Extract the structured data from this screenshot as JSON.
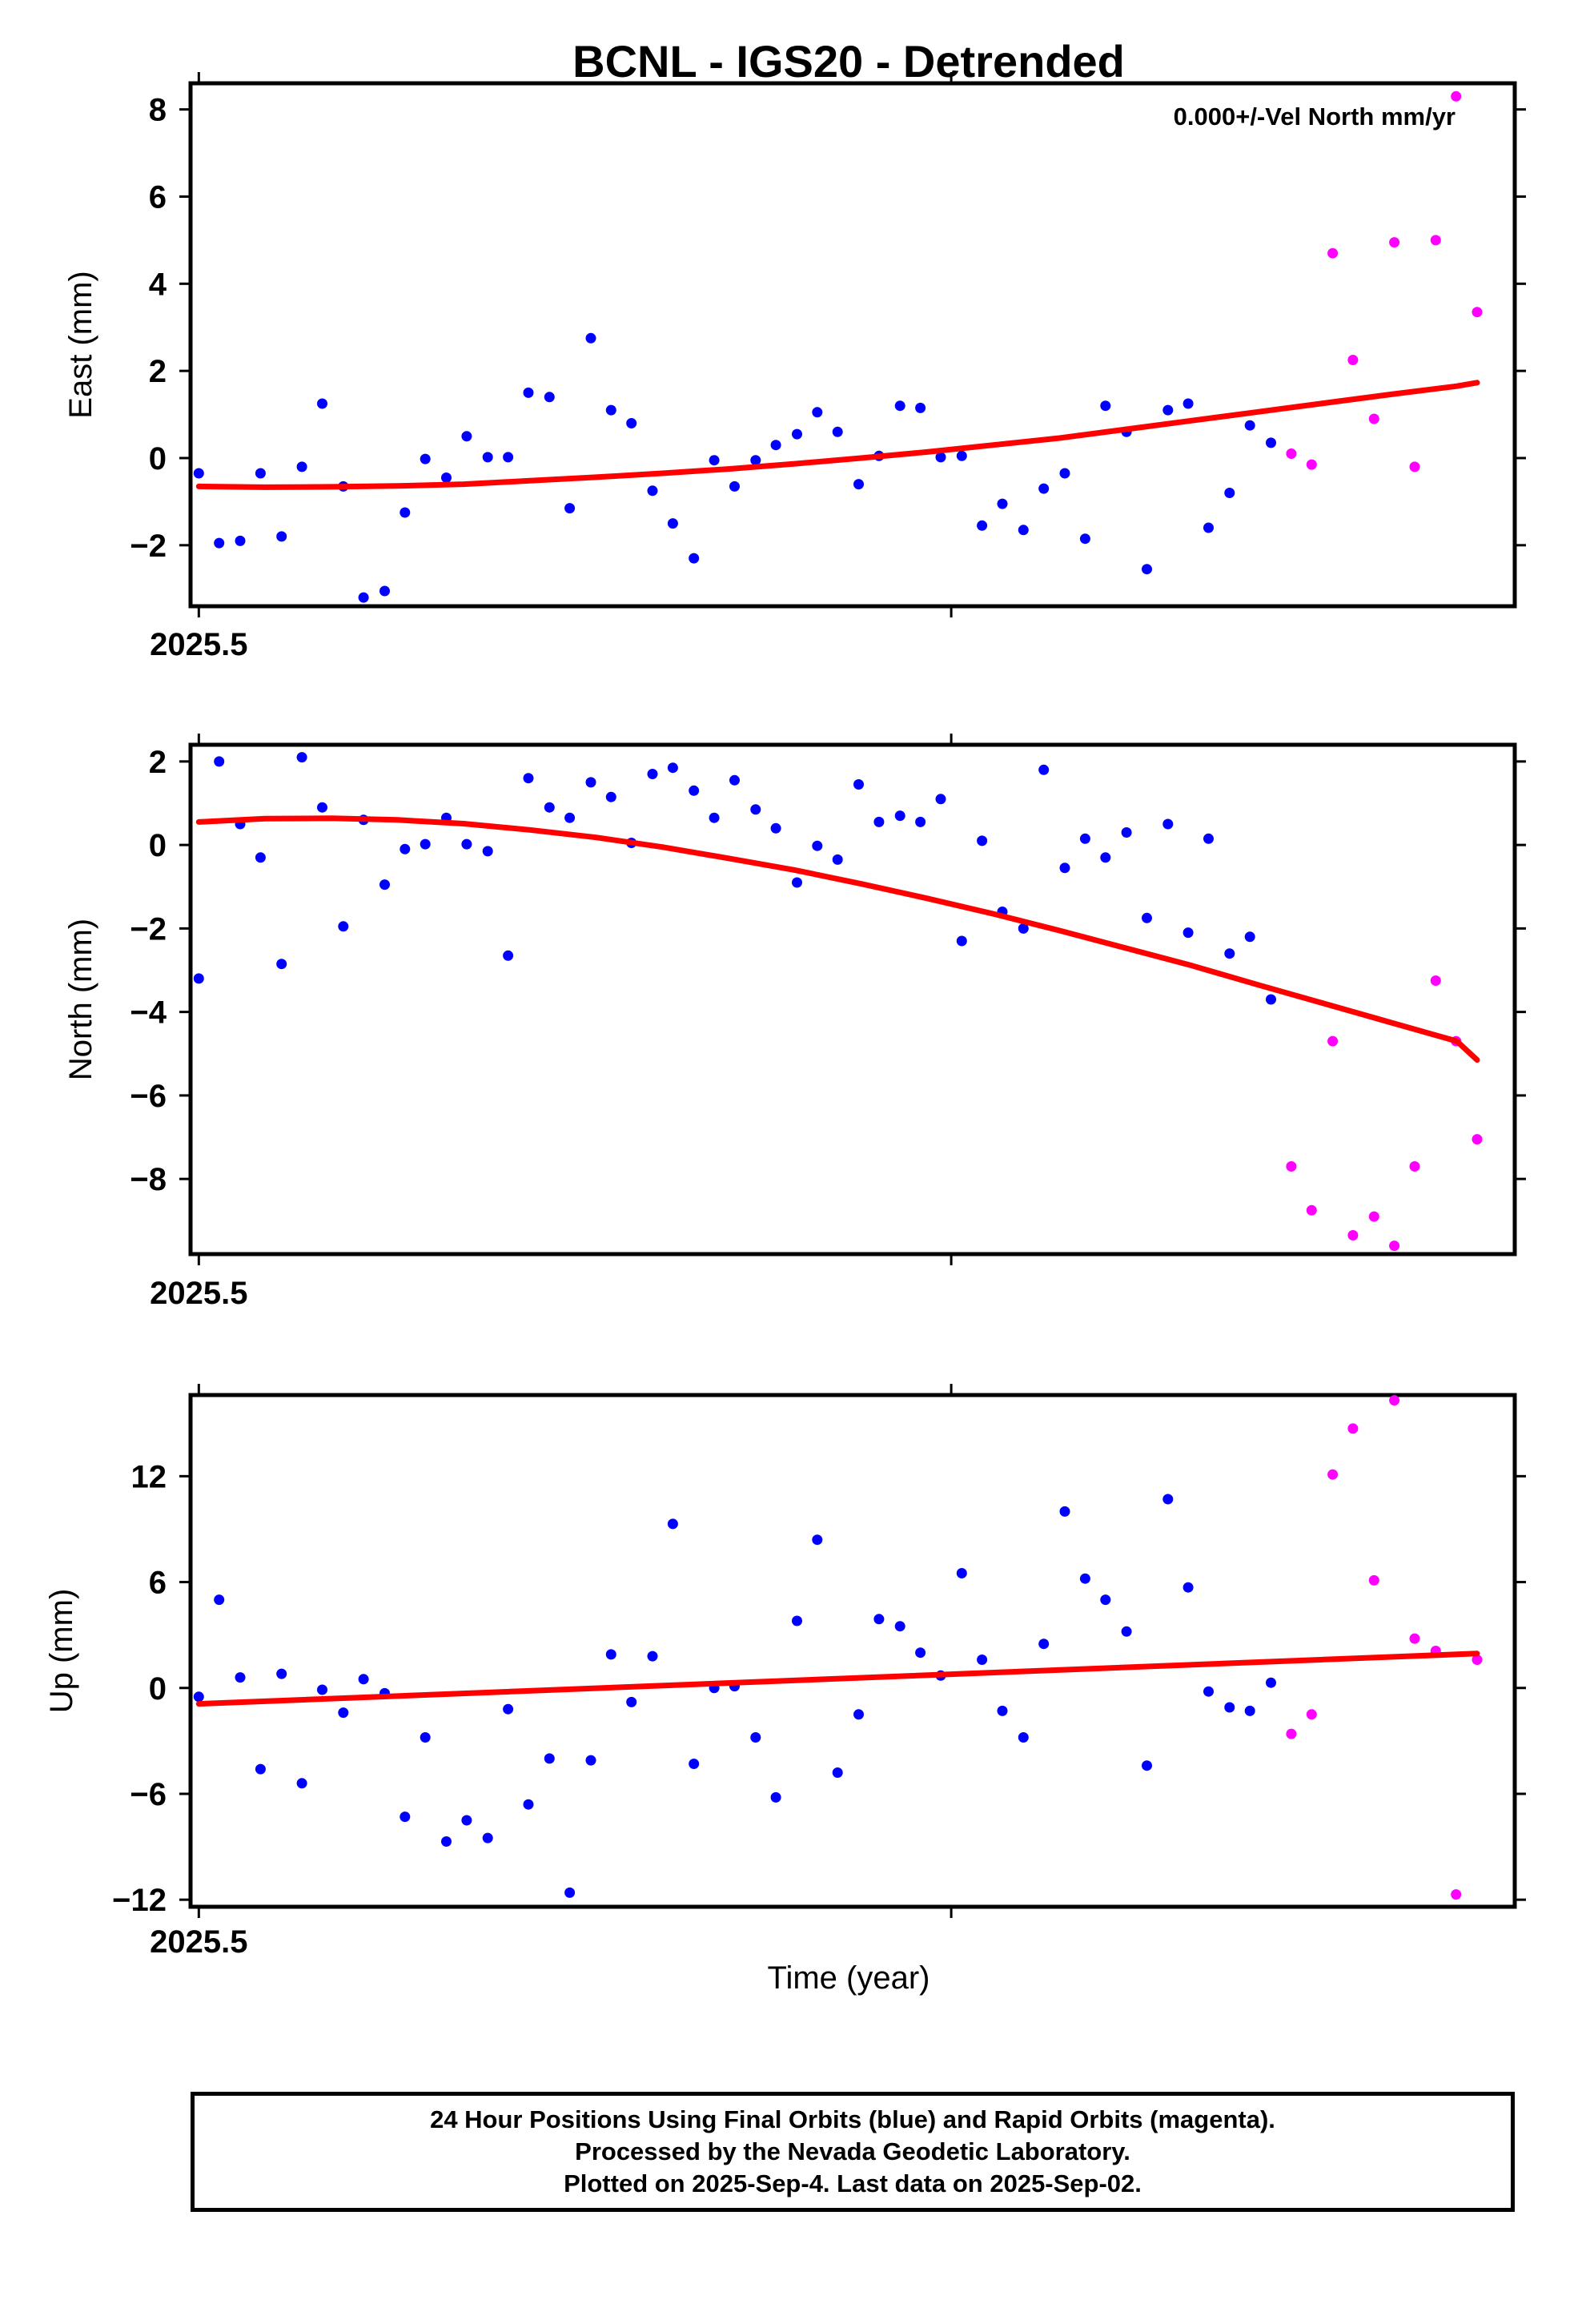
{
  "title": "BCNL - IGS20 - Detrended",
  "annotation": "0.000+/-Vel North mm/yr",
  "xlabel": "Time (year)",
  "footer": {
    "line1": "24 Hour Positions Using Final Orbits (blue) and Rapid Orbits (magenta).",
    "line2": "Processed by the Nevada Geodetic Laboratory.",
    "line3": "Plotted on 2025-Sep-4. Last data on 2025-Sep-02."
  },
  "colors": {
    "final": "#0000ff",
    "rapid": "#ff00ff",
    "trend": "#ff0000",
    "frame": "#000000"
  },
  "chart_data": [
    {
      "type": "scatter",
      "ylabel": "East (mm)",
      "xlim": [
        2025.4989,
        2025.6749
      ],
      "ylim": [
        -3.4,
        8.6
      ],
      "yticks": [
        -2,
        0,
        2,
        4,
        6,
        8
      ],
      "xticks": [
        {
          "value": 2025.5,
          "label": "2025.5"
        },
        {
          "value": 2025.6,
          "label": ""
        }
      ],
      "grid": false,
      "series": [
        {
          "points": [
            [
              2025.5,
              -0.35
            ],
            [
              2025.5027,
              -1.95
            ],
            [
              2025.5055,
              -1.9
            ],
            [
              2025.5082,
              -0.35
            ],
            [
              2025.511,
              -1.8
            ],
            [
              2025.5137,
              -0.2
            ],
            [
              2025.5164,
              1.25
            ],
            [
              2025.5192,
              -0.65
            ],
            [
              2025.5219,
              -3.2
            ],
            [
              2025.5247,
              -3.05
            ],
            [
              2025.5274,
              -1.25
            ],
            [
              2025.5301,
              -0.02
            ],
            [
              2025.5329,
              -0.45
            ],
            [
              2025.5356,
              0.5
            ],
            [
              2025.5384,
              0.02
            ],
            [
              2025.5411,
              0.02
            ],
            [
              2025.5438,
              1.5
            ],
            [
              2025.5466,
              1.4
            ],
            [
              2025.5493,
              -1.15
            ],
            [
              2025.5521,
              2.75
            ],
            [
              2025.5548,
              1.1
            ],
            [
              2025.5575,
              0.8
            ],
            [
              2025.5603,
              -0.75
            ],
            [
              2025.563,
              -1.5
            ],
            [
              2025.5658,
              -2.3
            ],
            [
              2025.5685,
              -0.05
            ],
            [
              2025.5712,
              -0.65
            ],
            [
              2025.574,
              -0.05
            ],
            [
              2025.5767,
              0.3
            ],
            [
              2025.5795,
              0.55
            ],
            [
              2025.5822,
              1.05
            ],
            [
              2025.5849,
              0.6
            ],
            [
              2025.5877,
              -0.6
            ],
            [
              2025.5904,
              0.05
            ],
            [
              2025.5932,
              1.2
            ],
            [
              2025.5959,
              1.15
            ],
            [
              2025.5986,
              0.02
            ],
            [
              2025.6014,
              0.05
            ],
            [
              2025.6041,
              -1.55
            ],
            [
              2025.6068,
              -1.05
            ],
            [
              2025.6096,
              -1.65
            ],
            [
              2025.6123,
              -0.7
            ],
            [
              2025.6151,
              -0.35
            ],
            [
              2025.6178,
              -1.85
            ],
            [
              2025.6205,
              1.2
            ],
            [
              2025.6233,
              0.6
            ],
            [
              2025.626,
              -2.55
            ],
            [
              2025.6288,
              1.1
            ],
            [
              2025.6315,
              1.25
            ],
            [
              2025.6342,
              -1.6
            ],
            [
              2025.637,
              -0.8
            ],
            [
              2025.6397,
              0.75
            ],
            [
              2025.6425,
              0.35
            ]
          ]
        },
        {
          "points": [
            [
              2025.6452,
              0.1
            ],
            [
              2025.6479,
              -0.15
            ],
            [
              2025.6507,
              4.7
            ],
            [
              2025.6534,
              2.25
            ],
            [
              2025.6562,
              0.9
            ],
            [
              2025.6589,
              4.95
            ],
            [
              2025.6616,
              -0.2
            ],
            [
              2025.6644,
              5.0
            ],
            [
              2025.6671,
              8.3
            ],
            [
              2025.6699,
              3.35
            ]
          ]
        },
        {
          "points": [
            [
              2025.5,
              -0.65
            ],
            [
              2025.5088,
              -0.67
            ],
            [
              2025.5176,
              -0.66
            ],
            [
              2025.5264,
              -0.64
            ],
            [
              2025.5352,
              -0.6
            ],
            [
              2025.544,
              -0.52
            ],
            [
              2025.5528,
              -0.44
            ],
            [
              2025.5616,
              -0.35
            ],
            [
              2025.5704,
              -0.25
            ],
            [
              2025.5792,
              -0.13
            ],
            [
              2025.588,
              0.0
            ],
            [
              2025.5968,
              0.14
            ],
            [
              2025.6056,
              0.3
            ],
            [
              2025.6144,
              0.46
            ],
            [
              2025.6232,
              0.66
            ],
            [
              2025.632,
              0.86
            ],
            [
              2025.6408,
              1.06
            ],
            [
              2025.6496,
              1.26
            ],
            [
              2025.6584,
              1.46
            ],
            [
              2025.6672,
              1.65
            ],
            [
              2025.6699,
              1.73
            ]
          ]
        }
      ]
    },
    {
      "type": "scatter",
      "ylabel": "North (mm)",
      "xlim": [
        2025.4989,
        2025.6749
      ],
      "ylim": [
        -9.8,
        2.4
      ],
      "yticks": [
        -8,
        -6,
        -4,
        -2,
        0,
        2
      ],
      "xticks": [
        {
          "value": 2025.5,
          "label": "2025.5"
        },
        {
          "value": 2025.6,
          "label": ""
        }
      ],
      "grid": false,
      "series": [
        {
          "points": [
            [
              2025.5,
              -3.2
            ],
            [
              2025.5027,
              2.0
            ],
            [
              2025.5055,
              0.5
            ],
            [
              2025.5082,
              -0.3
            ],
            [
              2025.511,
              -2.85
            ],
            [
              2025.5137,
              2.1
            ],
            [
              2025.5164,
              0.9
            ],
            [
              2025.5192,
              -1.95
            ],
            [
              2025.5219,
              0.6
            ],
            [
              2025.5247,
              -0.95
            ],
            [
              2025.5274,
              -0.1
            ],
            [
              2025.5301,
              0.02
            ],
            [
              2025.5329,
              0.65
            ],
            [
              2025.5356,
              0.02
            ],
            [
              2025.5384,
              -0.15
            ],
            [
              2025.5411,
              -2.65
            ],
            [
              2025.5438,
              1.6
            ],
            [
              2025.5466,
              0.9
            ],
            [
              2025.5493,
              0.65
            ],
            [
              2025.5521,
              1.5
            ],
            [
              2025.5548,
              1.15
            ],
            [
              2025.5575,
              0.05
            ],
            [
              2025.5603,
              1.7
            ],
            [
              2025.563,
              1.85
            ],
            [
              2025.5658,
              1.3
            ],
            [
              2025.5685,
              0.65
            ],
            [
              2025.5712,
              1.55
            ],
            [
              2025.574,
              0.85
            ],
            [
              2025.5767,
              0.4
            ],
            [
              2025.5795,
              -0.9
            ],
            [
              2025.5822,
              -0.02
            ],
            [
              2025.5849,
              -0.35
            ],
            [
              2025.5877,
              1.45
            ],
            [
              2025.5904,
              0.55
            ],
            [
              2025.5932,
              0.7
            ],
            [
              2025.5959,
              0.55
            ],
            [
              2025.5986,
              1.1
            ],
            [
              2025.6014,
              -2.3
            ],
            [
              2025.6041,
              0.1
            ],
            [
              2025.6068,
              -1.6
            ],
            [
              2025.6096,
              -2.0
            ],
            [
              2025.6123,
              1.8
            ],
            [
              2025.6151,
              -0.55
            ],
            [
              2025.6178,
              0.15
            ],
            [
              2025.6205,
              -0.3
            ],
            [
              2025.6233,
              0.3
            ],
            [
              2025.626,
              -1.75
            ],
            [
              2025.6288,
              0.5
            ],
            [
              2025.6315,
              -2.1
            ],
            [
              2025.6342,
              0.15
            ],
            [
              2025.637,
              -2.6
            ],
            [
              2025.6397,
              -2.2
            ],
            [
              2025.6425,
              -3.7
            ]
          ]
        },
        {
          "points": [
            [
              2025.6452,
              -7.7
            ],
            [
              2025.6479,
              -8.75
            ],
            [
              2025.6507,
              -4.7
            ],
            [
              2025.6534,
              -9.35
            ],
            [
              2025.6562,
              -8.9
            ],
            [
              2025.6589,
              -9.6
            ],
            [
              2025.6616,
              -7.7
            ],
            [
              2025.6644,
              -3.25
            ],
            [
              2025.6671,
              -4.7
            ],
            [
              2025.6699,
              -7.05
            ]
          ]
        },
        {
          "points": [
            [
              2025.5,
              0.55
            ],
            [
              2025.5088,
              0.63
            ],
            [
              2025.5176,
              0.64
            ],
            [
              2025.5264,
              0.6
            ],
            [
              2025.5352,
              0.51
            ],
            [
              2025.544,
              0.36
            ],
            [
              2025.5528,
              0.18
            ],
            [
              2025.5616,
              -0.05
            ],
            [
              2025.5704,
              -0.32
            ],
            [
              2025.5792,
              -0.6
            ],
            [
              2025.588,
              -0.93
            ],
            [
              2025.5968,
              -1.28
            ],
            [
              2025.6056,
              -1.65
            ],
            [
              2025.6144,
              -2.05
            ],
            [
              2025.6232,
              -2.47
            ],
            [
              2025.632,
              -2.89
            ],
            [
              2025.6408,
              -3.35
            ],
            [
              2025.6496,
              -3.8
            ],
            [
              2025.6584,
              -4.25
            ],
            [
              2025.6672,
              -4.7
            ],
            [
              2025.6699,
              -5.15
            ]
          ]
        }
      ]
    },
    {
      "type": "scatter",
      "ylabel": "Up (mm)",
      "xlim": [
        2025.4989,
        2025.6749
      ],
      "ylim": [
        -12.4,
        16.6
      ],
      "yticks": [
        -12,
        -6,
        0,
        6,
        12
      ],
      "xticks": [
        {
          "value": 2025.5,
          "label": "2025.5"
        },
        {
          "value": 2025.6,
          "label": ""
        }
      ],
      "grid": false,
      "series": [
        {
          "points": [
            [
              2025.5,
              -0.5
            ],
            [
              2025.5027,
              5.0
            ],
            [
              2025.5055,
              0.6
            ],
            [
              2025.5082,
              -4.6
            ],
            [
              2025.511,
              0.8
            ],
            [
              2025.5137,
              -5.4
            ],
            [
              2025.5164,
              -0.1
            ],
            [
              2025.5192,
              -1.4
            ],
            [
              2025.5219,
              0.5
            ],
            [
              2025.5247,
              -0.3
            ],
            [
              2025.5274,
              -7.3
            ],
            [
              2025.5301,
              -2.8
            ],
            [
              2025.5329,
              -8.7
            ],
            [
              2025.5356,
              -7.5
            ],
            [
              2025.5384,
              -8.5
            ],
            [
              2025.5411,
              -1.2
            ],
            [
              2025.5438,
              -6.6
            ],
            [
              2025.5466,
              -4.0
            ],
            [
              2025.5493,
              -11.6
            ],
            [
              2025.5521,
              -4.1
            ],
            [
              2025.5548,
              1.9
            ],
            [
              2025.5575,
              -0.8
            ],
            [
              2025.5603,
              1.8
            ],
            [
              2025.563,
              9.3
            ],
            [
              2025.5658,
              -4.3
            ],
            [
              2025.5685,
              0.0
            ],
            [
              2025.5712,
              0.1
            ],
            [
              2025.574,
              -2.8
            ],
            [
              2025.5767,
              -6.2
            ],
            [
              2025.5795,
              3.8
            ],
            [
              2025.5822,
              8.4
            ],
            [
              2025.5849,
              -4.8
            ],
            [
              2025.5877,
              -1.5
            ],
            [
              2025.5904,
              3.9
            ],
            [
              2025.5932,
              3.5
            ],
            [
              2025.5959,
              2.0
            ],
            [
              2025.5986,
              0.7
            ],
            [
              2025.6014,
              6.5
            ],
            [
              2025.6041,
              1.6
            ],
            [
              2025.6068,
              -1.3
            ],
            [
              2025.6096,
              -2.8
            ],
            [
              2025.6123,
              2.5
            ],
            [
              2025.6151,
              10.0
            ],
            [
              2025.6178,
              6.2
            ],
            [
              2025.6205,
              5.0
            ],
            [
              2025.6233,
              3.2
            ],
            [
              2025.626,
              -4.4
            ],
            [
              2025.6288,
              10.7
            ],
            [
              2025.6315,
              5.7
            ],
            [
              2025.6342,
              -0.2
            ],
            [
              2025.637,
              -1.1
            ],
            [
              2025.6397,
              -1.3
            ],
            [
              2025.6425,
              0.3
            ]
          ]
        },
        {
          "points": [
            [
              2025.6452,
              -2.6
            ],
            [
              2025.6479,
              -1.5
            ],
            [
              2025.6507,
              12.1
            ],
            [
              2025.6534,
              14.7
            ],
            [
              2025.6562,
              6.1
            ],
            [
              2025.6589,
              16.3
            ],
            [
              2025.6616,
              2.8
            ],
            [
              2025.6644,
              2.1
            ],
            [
              2025.6671,
              -11.7
            ],
            [
              2025.6699,
              1.6
            ]
          ]
        },
        {
          "points": [
            [
              2025.5,
              -0.9
            ],
            [
              2025.6699,
              1.95
            ]
          ]
        }
      ]
    }
  ]
}
